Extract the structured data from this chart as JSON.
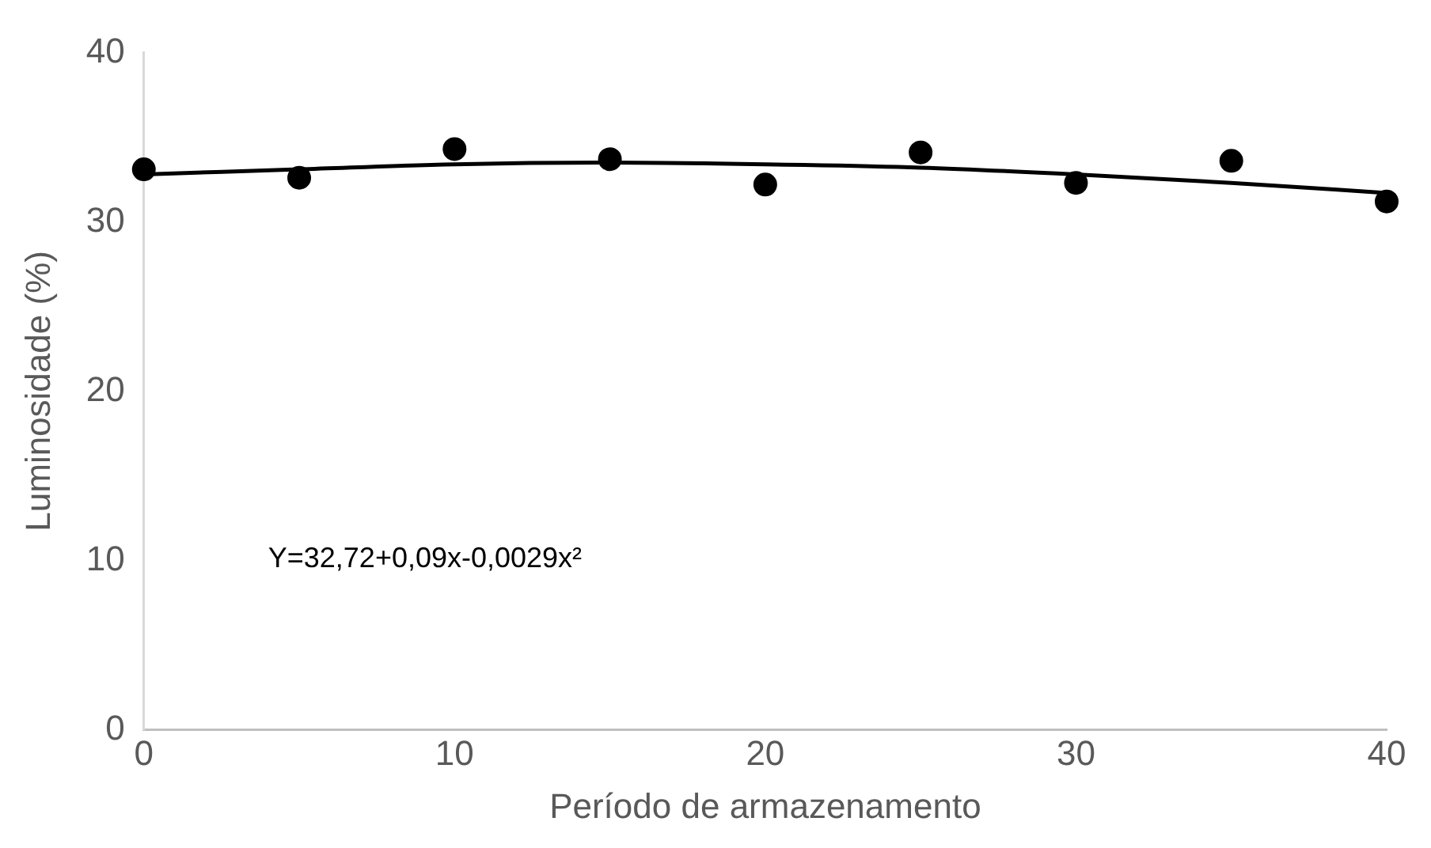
{
  "chart_data": {
    "type": "scatter",
    "xlabel": "Período de armazenamento",
    "ylabel": "Luminosidade (%)",
    "x": [
      0,
      5,
      10,
      15,
      20,
      25,
      30,
      35,
      40
    ],
    "series": [
      {
        "color": "#000000",
        "marker": "circle",
        "values": [
          33.1,
          32.6,
          34.3,
          33.7,
          32.2,
          34.1,
          32.3,
          33.6,
          31.2
        ]
      },
      {
        "type": "line",
        "color": "#000000",
        "marker": "none",
        "x": [
          0,
          5,
          10,
          15,
          20,
          25,
          30,
          35,
          40
        ],
        "values": [
          32.8,
          33.1,
          33.4,
          33.5,
          33.4,
          33.2,
          32.8,
          32.3,
          31.7
        ]
      }
    ],
    "xlim": [
      0,
      40
    ],
    "xticks": [
      0,
      10,
      20,
      30,
      40
    ],
    "ylim": [
      0,
      40
    ],
    "yticks": [
      0,
      10,
      20,
      30,
      40
    ],
    "grid": false,
    "legend": false,
    "annotations": [
      "Y=32,72+0,09x-0,0029x²"
    ]
  }
}
